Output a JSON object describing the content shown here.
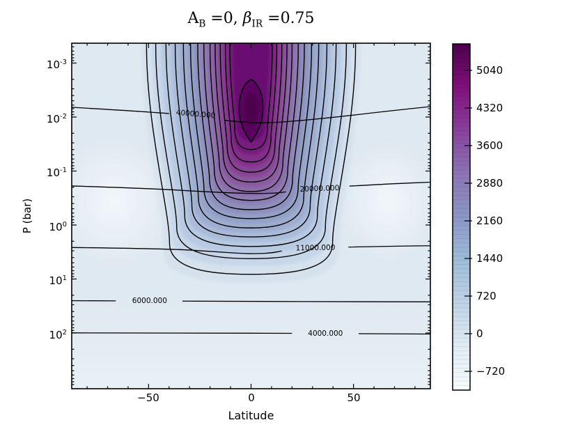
{
  "title": {
    "var1": "A",
    "var1_sub": "B",
    "eq1": " =0, ",
    "var2": "β",
    "var2_sub": "IR",
    "eq2": " =0.75"
  },
  "axes": {
    "xlabel": "Latitude",
    "ylabel": "P (bar)",
    "x_tick_labels": [
      "−50",
      "0",
      "50"
    ],
    "y_tick_labels": [
      {
        "base": "10",
        "exp": "-3"
      },
      {
        "base": "10",
        "exp": "-2"
      },
      {
        "base": "10",
        "exp": "-1"
      },
      {
        "base": "10",
        "exp": "0"
      },
      {
        "base": "10",
        "exp": "1"
      },
      {
        "base": "10",
        "exp": "2"
      }
    ]
  },
  "colorbar_labels": [
    "5040",
    "4320",
    "3600",
    "2880",
    "2160",
    "1440",
    "720",
    "0",
    "−720"
  ],
  "contour_labels": [
    "40000.000",
    "20000.000",
    "11000.000",
    "6000.000",
    "4000.000"
  ],
  "chart_data": {
    "type": "contour",
    "title": "A_B = 0, beta_IR = 0.75",
    "xlabel": "Latitude",
    "ylabel": "P (bar)",
    "x_range": [
      -87.5,
      87.5
    ],
    "x_ticks": [
      -50,
      0,
      50
    ],
    "y_scale": "log",
    "y_ticks_bar": [
      0.001,
      0.01,
      0.1,
      1,
      10,
      100
    ],
    "y_range_bar": [
      0.00043,
      1070
    ],
    "colormap": "BuPu",
    "colorbar": {
      "vmin": -1080,
      "vmax": 5560,
      "ticks": [
        5040,
        4320,
        3600,
        2880,
        2160,
        1440,
        720,
        0,
        -720
      ],
      "tick_step": 720,
      "colors_low_to_high": [
        "#f7fcfd",
        "#e0ecf4",
        "#bfd3e6",
        "#9ebcda",
        "#8c96c6",
        "#8c74b5",
        "#88419d",
        "#810f7c",
        "#4d004b"
      ]
    },
    "line_contour_levels": [
      40000,
      20000,
      11000,
      6000,
      4000
    ],
    "structure": {
      "description": "Warm column centered at latitude 0 extending from the top of the atmosphere (~4e-4 bar) down to ~10 bar; peak values ~5500 near 2-30 mbar at the equator; background near/below 0 toward the poles and at depth; slight bright (near-white) minima at |lat|~65, P~0.4 bar.",
      "background_color": "#dfe9f1",
      "filled_bands": [
        [
          53.5,
          12,
          "#d5e2ee"
        ],
        [
          48.5,
          5.8,
          "#c7d7e9"
        ],
        [
          44,
          3.3,
          "#b8cae2"
        ],
        [
          39,
          2.05,
          "#a9bbd9"
        ],
        [
          35,
          1.37,
          "#9daccf"
        ],
        [
          31,
          0.92,
          "#93a0c6"
        ],
        [
          27.7,
          0.63,
          "#8e8fbc"
        ],
        [
          24.4,
          0.42,
          "#8d7db2"
        ],
        [
          21.5,
          0.29,
          "#8c6ba8"
        ],
        [
          18.7,
          0.195,
          "#8a589e"
        ],
        [
          16.2,
          0.129,
          "#884394"
        ],
        [
          13.6,
          0.082,
          "#832f8a"
        ],
        [
          11.2,
          0.05,
          "#781a7e"
        ],
        [
          9.0,
          0.028,
          "#6a0973"
        ]
      ],
      "line_tongues": [
        [
          51,
          8.2
        ],
        [
          46.5,
          4.2
        ],
        [
          41.5,
          2.5
        ],
        [
          37,
          1.66
        ],
        [
          33,
          1.13
        ],
        [
          29.5,
          0.76
        ],
        [
          26,
          0.52
        ],
        [
          23,
          0.35
        ],
        [
          20,
          0.24
        ],
        [
          17.5,
          0.16
        ],
        [
          15,
          0.105
        ],
        [
          12.5,
          0.068
        ],
        [
          10.3,
          0.04
        ]
      ],
      "hot_core": {
        "lat_half_width_deg": 5.8,
        "p_top_bar": 0.002,
        "p_bottom_bar": 0.029,
        "fill": "#5a0261",
        "inner_fill": "#4d004b"
      },
      "bright_minima": [
        {
          "lat": -67,
          "p_bar": 0.37
        },
        {
          "lat": 67,
          "p_bar": 0.37
        }
      ],
      "labeled_lines": [
        {
          "value": 40000,
          "label_index": 0,
          "label_lat": -27,
          "label_p": 0.0089,
          "rot": 5,
          "segments": [
            [
              [
                -87.5,
                0.0066
              ],
              [
                -60,
                0.0076
              ],
              [
                -40,
                0.0086
              ]
            ],
            [
              [
                -13,
                0.0115
              ],
              [
                0,
                0.013
              ],
              [
                15,
                0.0125
              ],
              [
                40,
                0.0102
              ],
              [
                65,
                0.0079
              ],
              [
                87.5,
                0.0064
              ]
            ]
          ]
        },
        {
          "value": 20000,
          "label_index": 1,
          "label_lat": 33.5,
          "label_p": 0.214,
          "rot": -2,
          "segments": [
            [
              [
                -87.5,
                0.189
              ],
              [
                -50,
                0.21
              ],
              [
                -20,
                0.245
              ],
              [
                0,
                0.262
              ],
              [
                12,
                0.258
              ],
              [
                17,
                0.243
              ]
            ],
            [
              [
                48,
                0.19
              ],
              [
                70,
                0.171
              ],
              [
                87.5,
                0.161
              ]
            ]
          ]
        },
        {
          "value": 11000,
          "label_index": 2,
          "label_lat": 31.5,
          "label_p": 2.66,
          "rot": -1,
          "segments": [
            [
              [
                -87.5,
                2.61
              ],
              [
                -40,
                2.74
              ],
              [
                -15,
                3.18
              ],
              [
                0,
                3.44
              ],
              [
                10,
                3.3
              ],
              [
                15,
                3.02
              ]
            ],
            [
              [
                47.5,
                2.56
              ],
              [
                70,
                2.46
              ],
              [
                87.5,
                2.42
              ]
            ]
          ]
        },
        {
          "value": 6000,
          "label_index": 3,
          "label_lat": -49.5,
          "label_p": 25.5,
          "rot": 0,
          "segments": [
            [
              [
                -87.5,
                25.2
              ],
              [
                -66,
                25.4
              ]
            ],
            [
              [
                -33.5,
                25.7
              ],
              [
                0,
                26.0
              ],
              [
                50,
                26.3
              ],
              [
                87.5,
                26.5
              ]
            ]
          ]
        },
        {
          "value": 4000,
          "label_index": 4,
          "label_lat": 36.3,
          "label_p": 102.5,
          "rot": 0,
          "segments": [
            [
              [
                -87.5,
                99.5
              ],
              [
                -20,
                100.5
              ],
              [
                20,
                101.5
              ]
            ],
            [
              [
                52.5,
                103
              ],
              [
                87.5,
                104.5
              ]
            ]
          ]
        }
      ]
    }
  }
}
